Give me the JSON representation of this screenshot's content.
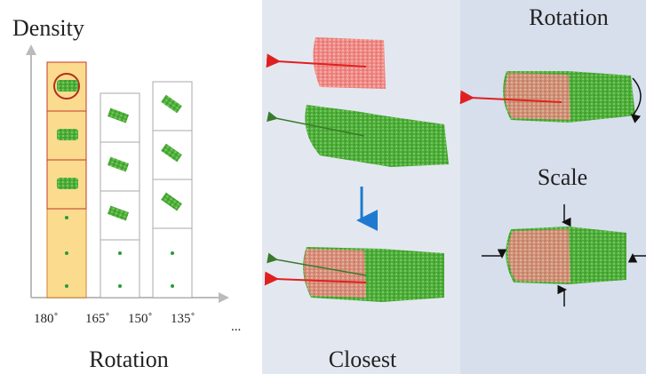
{
  "left": {
    "title": "Density",
    "angles": [
      "180˚",
      "165˚",
      "150˚",
      "135˚"
    ],
    "ellipsis": "...",
    "caption": "Rotation"
  },
  "middle": {
    "caption": "Closest"
  },
  "right": {
    "top_label": "Rotation",
    "bottom_label": "Scale"
  }
}
